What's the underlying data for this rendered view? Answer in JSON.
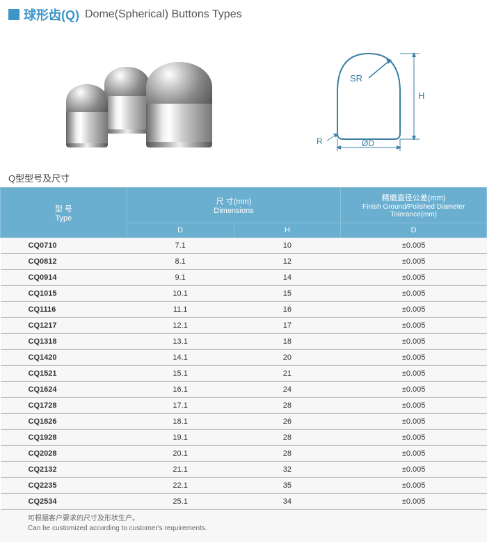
{
  "header": {
    "title_cn": "球形齿(Q)",
    "title_en": "Dome(Spherical) Buttons Types"
  },
  "subtitle": "Q型型号及尺寸",
  "table": {
    "headers": {
      "type_cn": "型 号",
      "type_en": "Type",
      "dim_cn": "尺 寸(mm)",
      "dim_en": "Dimensions",
      "tol_cn": "精磨直径公差(mm)",
      "tol_en": "Finish Ground/Polished Diameter Tolerance(mm)",
      "col_d": "D",
      "col_h": "H",
      "col_tol_d": "D"
    },
    "rows": [
      {
        "type": "CQ0710",
        "d": "7.1",
        "h": "10",
        "tol": "±0.005"
      },
      {
        "type": "CQ0812",
        "d": "8.1",
        "h": "12",
        "tol": "±0.005"
      },
      {
        "type": "CQ0914",
        "d": "9.1",
        "h": "14",
        "tol": "±0.005"
      },
      {
        "type": "CQ1015",
        "d": "10.1",
        "h": "15",
        "tol": "±0.005"
      },
      {
        "type": "CQ1116",
        "d": "11.1",
        "h": "16",
        "tol": "±0.005"
      },
      {
        "type": "CQ1217",
        "d": "12.1",
        "h": "17",
        "tol": "±0.005"
      },
      {
        "type": "CQ1318",
        "d": "13.1",
        "h": "18",
        "tol": "±0.005"
      },
      {
        "type": "CQ1420",
        "d": "14.1",
        "h": "20",
        "tol": "±0.005"
      },
      {
        "type": "CQ1521",
        "d": "15.1",
        "h": "21",
        "tol": "±0.005"
      },
      {
        "type": "CQ1624",
        "d": "16.1",
        "h": "24",
        "tol": "±0.005"
      },
      {
        "type": "CQ1728",
        "d": "17.1",
        "h": "28",
        "tol": "±0.005"
      },
      {
        "type": "CQ1826",
        "d": "18.1",
        "h": "26",
        "tol": "±0.005"
      },
      {
        "type": "CQ1928",
        "d": "19.1",
        "h": "28",
        "tol": "±0.005"
      },
      {
        "type": "CQ2028",
        "d": "20.1",
        "h": "28",
        "tol": "±0.005"
      },
      {
        "type": "CQ2132",
        "d": "21.1",
        "h": "32",
        "tol": "±0.005"
      },
      {
        "type": "CQ2235",
        "d": "22.1",
        "h": "35",
        "tol": "±0.005"
      },
      {
        "type": "CQ2534",
        "d": "25.1",
        "h": "34",
        "tol": "±0.005"
      }
    ]
  },
  "footnote": {
    "cn": "可根据客户要求的尺寸及形状生产。",
    "en": "Can be customized according to customer's requirements."
  },
  "diagram_labels": {
    "sr": "SR",
    "h": "H",
    "r": "R",
    "od": "ØD"
  },
  "colors": {
    "accent": "#3e95c8",
    "header_bg": "#6aaed0",
    "header_border": "#8cc0d9",
    "row_bg": "#f7f7f7",
    "row_border": "#bbbbbb"
  }
}
